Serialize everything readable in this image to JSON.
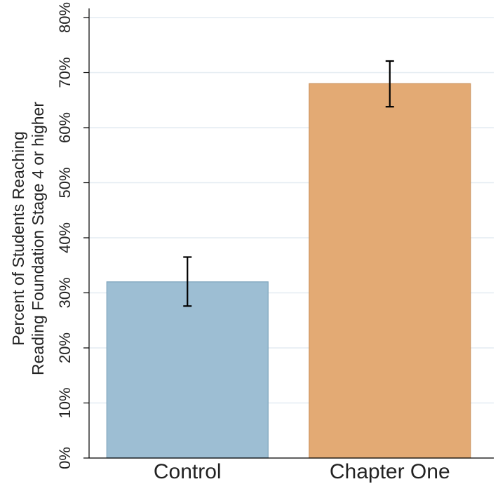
{
  "chart_data": {
    "type": "bar",
    "title": "",
    "xlabel": "",
    "ylabel": [
      "Percent of Students Reaching",
      "Reading Foundation Stage 4 or higher"
    ],
    "categories": [
      "Control",
      "Chapter One"
    ],
    "values": [
      32,
      68
    ],
    "error_bars": [
      {
        "low": 27.6,
        "high": 36.5
      },
      {
        "low": 63.8,
        "high": 72.1
      }
    ],
    "bar_colors": [
      "#9dbed3",
      "#e3aa74"
    ],
    "bar_edge_colors": [
      "#7fa5bd",
      "#cc9560"
    ],
    "ylim": [
      0,
      80
    ],
    "yticks": [
      0,
      10,
      20,
      30,
      40,
      50,
      60,
      70,
      80
    ],
    "ytick_labels": [
      "0%",
      "10%",
      "20%",
      "30%",
      "40%",
      "50%",
      "60%",
      "70%",
      "80%"
    ],
    "grid": true,
    "grid_color": "#e4ecf2"
  }
}
